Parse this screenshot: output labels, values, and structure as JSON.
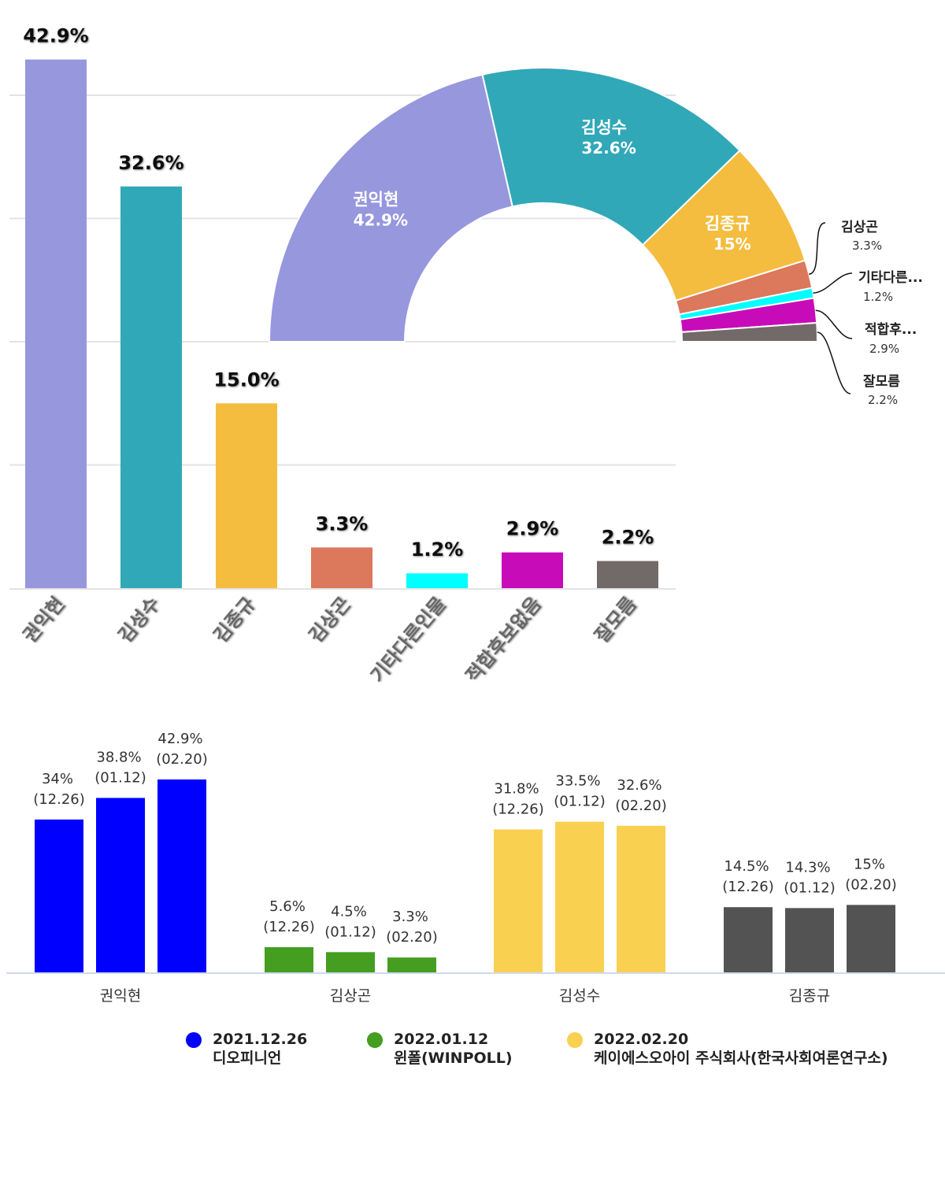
{
  "chart_data": [
    {
      "type": "bar",
      "title": "",
      "categories": [
        "권익현",
        "김성수",
        "김종규",
        "김상곤",
        "기타다른인물",
        "적합후보없음",
        "잘모름"
      ],
      "values": [
        42.9,
        32.6,
        15.0,
        3.3,
        1.2,
        2.9,
        2.2
      ],
      "labels": [
        "42.9%",
        "32.6%",
        "15.0%",
        "3.3%",
        "1.2%",
        "2.9%",
        "2.2%"
      ],
      "colors": [
        "#9797de",
        "#31a8b8",
        "#f4bd40",
        "#dc785b",
        "#00ffff",
        "#c80bb9",
        "#726a68"
      ],
      "ylim": [
        0,
        45
      ],
      "gridlines": [
        10,
        20,
        30,
        40
      ],
      "grid": true,
      "xlabel": "",
      "ylabel": ""
    },
    {
      "type": "pie",
      "variant": "half-donut",
      "slices": [
        {
          "label": "권익현",
          "value": 42.9,
          "text": "42.9%",
          "color": "#9797de",
          "label_inside": true
        },
        {
          "label": "김성수",
          "value": 32.6,
          "text": "32.6%",
          "color": "#31a8b8",
          "label_inside": true
        },
        {
          "label": "김종규",
          "value": 15,
          "text": "15%",
          "color": "#f4bd40",
          "label_inside": true
        },
        {
          "label": "김상곤",
          "value": 3.3,
          "text": "3.3%",
          "color": "#dc785b",
          "label_inside": false
        },
        {
          "label": "기타다른...",
          "value": 1.2,
          "text": "1.2%",
          "color": "#00ffff",
          "label_inside": false
        },
        {
          "label": "적합후...",
          "value": 2.9,
          "text": "2.9%",
          "color": "#c80bb9",
          "label_inside": false
        },
        {
          "label": "잘모름",
          "value": 2.2,
          "text": "2.2%",
          "color": "#726a68",
          "label_inside": false
        }
      ]
    },
    {
      "type": "bar",
      "title": "",
      "categories": [
        "권익현",
        "김상곤",
        "김성수",
        "김종규"
      ],
      "category_colors": [
        "#0000ff",
        "#459e20",
        "#fad050",
        "#535353"
      ],
      "series": [
        {
          "name": "2021.12.26 디오피니언",
          "date_short": "(12.26)",
          "values": [
            34,
            5.6,
            31.8,
            14.5
          ],
          "labels": [
            "34%",
            "5.6%",
            "31.8%",
            "14.5%"
          ]
        },
        {
          "name": "2022.01.12 윈폴(WINPOLL)",
          "date_short": "(01.12)",
          "values": [
            38.8,
            4.5,
            33.5,
            14.3
          ],
          "labels": [
            "38.8%",
            "4.5%",
            "33.5%",
            "14.3%"
          ]
        },
        {
          "name": "2022.02.20 케이에스오아이 주식회사(한국사회여론연구소)",
          "date_short": "(02.20)",
          "values": [
            42.9,
            3.3,
            32.6,
            15
          ],
          "labels": [
            "42.9%",
            "3.3%",
            "32.6%",
            "15%"
          ]
        }
      ],
      "ylim": [
        0,
        45
      ],
      "grid": false,
      "legend": {
        "placement": "bottom",
        "items": [
          {
            "date": "2021.12.26",
            "org": "디오피니언",
            "color": "#0000ff"
          },
          {
            "date": "2022.01.12",
            "org": "윈폴(WINPOLL)",
            "color": "#459e20"
          },
          {
            "date": "2022.02.20",
            "org": "케이에스오아이 주식회사(한국사회여론연구소)",
            "color": "#fad050"
          }
        ]
      }
    }
  ]
}
